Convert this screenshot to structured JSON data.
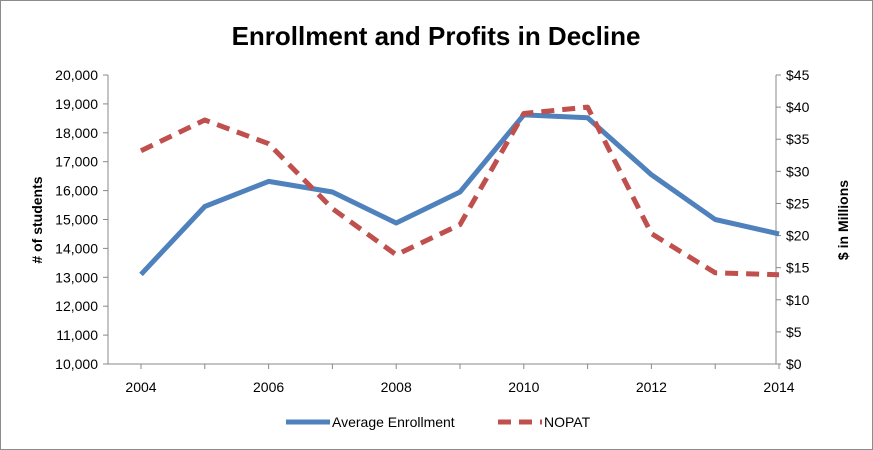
{
  "chart_data": {
    "type": "line",
    "title": "Enrollment and Profits in Decline",
    "x": [
      2004,
      2005,
      2006,
      2007,
      2008,
      2009,
      2010,
      2011,
      2012,
      2013,
      2014
    ],
    "x_tick_labels": [
      "2004",
      "2006",
      "2008",
      "2010",
      "2012",
      "2014"
    ],
    "xlim": [
      2004,
      2014
    ],
    "ylabel": "# of students",
    "ylim": [
      10000,
      20000
    ],
    "y_tick_labels": [
      "10,000",
      "11,000",
      "12,000",
      "13,000",
      "14,000",
      "15,000",
      "16,000",
      "17,000",
      "18,000",
      "19,000",
      "20,000"
    ],
    "y2label": "$ in Millions",
    "y2lim": [
      0,
      45
    ],
    "y2_tick_labels": [
      "$0",
      "$5",
      "$10",
      "$15",
      "$20",
      "$25",
      "$30",
      "$35",
      "$40",
      "$45"
    ],
    "grid": false,
    "legend_position": "bottom",
    "series": [
      {
        "name": "Average Enrollment",
        "axis": "left",
        "style": "solid",
        "color": "#4f81bd",
        "values": [
          13100,
          15450,
          16320,
          15950,
          14880,
          15950,
          18620,
          18520,
          16550,
          15000,
          14500
        ]
      },
      {
        "name": "NOPAT",
        "axis": "right",
        "style": "dashed",
        "color": "#c0504d",
        "values": [
          33.2,
          38.0,
          34.3,
          24.2,
          17.0,
          21.7,
          39.0,
          40.0,
          20.3,
          14.2,
          13.9
        ]
      }
    ]
  }
}
